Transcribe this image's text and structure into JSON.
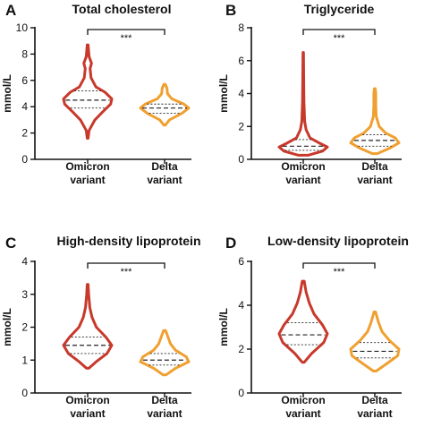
{
  "chart_data": [
    {
      "panel": "A",
      "type": "violin",
      "title": "Total cholesterol",
      "ylabel": "mmol/L",
      "ylim": [
        0,
        10
      ],
      "yticks": [
        "0",
        "2",
        "4",
        "6",
        "8",
        "10"
      ],
      "categories": [
        "Omicron\nvariant",
        "Delta\nvariant"
      ],
      "significance": "***",
      "series": [
        {
          "color": "#c8392b",
          "min": 1.6,
          "q1": 3.9,
          "median": 4.5,
          "q3": 5.2,
          "max": 8.7,
          "profile": [
            [
              1.6,
              0.02
            ],
            [
              2.2,
              0.06
            ],
            [
              3.0,
              0.3
            ],
            [
              3.6,
              0.62
            ],
            [
              4.2,
              0.95
            ],
            [
              4.6,
              1.0
            ],
            [
              5.1,
              0.72
            ],
            [
              5.5,
              0.34
            ],
            [
              6.2,
              0.14
            ],
            [
              6.9,
              0.1
            ],
            [
              7.3,
              0.16
            ],
            [
              7.8,
              0.06
            ],
            [
              8.7,
              0.02
            ]
          ]
        },
        {
          "color": "#f0a030",
          "min": 2.6,
          "q1": 3.5,
          "median": 3.9,
          "q3": 4.2,
          "max": 5.7,
          "profile": [
            [
              2.6,
              0.03
            ],
            [
              3.0,
              0.2
            ],
            [
              3.5,
              0.72
            ],
            [
              3.9,
              1.0
            ],
            [
              4.2,
              0.8
            ],
            [
              4.6,
              0.3
            ],
            [
              5.0,
              0.12
            ],
            [
              5.4,
              0.1
            ],
            [
              5.7,
              0.03
            ]
          ]
        }
      ]
    },
    {
      "panel": "B",
      "type": "violin",
      "title": "Triglyceride",
      "ylabel": "mmol/L",
      "ylim": [
        0,
        8
      ],
      "yticks": [
        "0",
        "2",
        "4",
        "6",
        "8"
      ],
      "categories": [
        "Omicron\nvariant",
        "Delta\nvariant"
      ],
      "significance": "***",
      "series": [
        {
          "color": "#c8392b",
          "min": 0.25,
          "q1": 0.55,
          "median": 0.8,
          "q3": 1.2,
          "max": 6.5,
          "profile": [
            [
              0.25,
              0.2
            ],
            [
              0.5,
              0.8
            ],
            [
              0.75,
              1.0
            ],
            [
              1.0,
              0.65
            ],
            [
              1.3,
              0.28
            ],
            [
              1.8,
              0.12
            ],
            [
              2.3,
              0.06
            ],
            [
              3.5,
              0.03
            ],
            [
              5.0,
              0.02
            ],
            [
              6.5,
              0.01
            ]
          ]
        },
        {
          "color": "#f0a030",
          "min": 0.35,
          "q1": 0.8,
          "median": 1.15,
          "q3": 1.5,
          "max": 4.3,
          "profile": [
            [
              0.35,
              0.1
            ],
            [
              0.7,
              0.65
            ],
            [
              1.0,
              1.0
            ],
            [
              1.3,
              0.85
            ],
            [
              1.6,
              0.45
            ],
            [
              2.0,
              0.18
            ],
            [
              2.6,
              0.06
            ],
            [
              3.3,
              0.04
            ],
            [
              4.0,
              0.04
            ],
            [
              4.3,
              0.02
            ]
          ]
        }
      ]
    },
    {
      "panel": "C",
      "type": "violin",
      "title": "High-density lipoprotein",
      "ylabel": "mmol/L",
      "ylim": [
        0,
        4
      ],
      "yticks": [
        "0",
        "1",
        "2",
        "3",
        "4"
      ],
      "categories": [
        "Omicron\nvariant",
        "Delta\nvariant"
      ],
      "significance": "***",
      "series": [
        {
          "color": "#c8392b",
          "min": 0.75,
          "q1": 1.2,
          "median": 1.45,
          "q3": 1.7,
          "max": 3.3,
          "profile": [
            [
              0.75,
              0.05
            ],
            [
              0.95,
              0.35
            ],
            [
              1.2,
              0.8
            ],
            [
              1.45,
              1.0
            ],
            [
              1.7,
              0.75
            ],
            [
              2.0,
              0.36
            ],
            [
              2.3,
              0.18
            ],
            [
              2.6,
              0.09
            ],
            [
              3.0,
              0.04
            ],
            [
              3.3,
              0.02
            ]
          ]
        },
        {
          "color": "#f0a030",
          "min": 0.55,
          "q1": 0.85,
          "median": 1.0,
          "q3": 1.2,
          "max": 1.9,
          "profile": [
            [
              0.55,
              0.06
            ],
            [
              0.75,
              0.45
            ],
            [
              0.95,
              1.0
            ],
            [
              1.1,
              0.9
            ],
            [
              1.3,
              0.45
            ],
            [
              1.5,
              0.24
            ],
            [
              1.7,
              0.14
            ],
            [
              1.9,
              0.04
            ]
          ]
        }
      ]
    },
    {
      "panel": "D",
      "type": "violin",
      "title": "Low-density lipoprotein",
      "ylabel": "mmol/L",
      "ylim": [
        0,
        6
      ],
      "yticks": [
        "0",
        "2",
        "4",
        "6"
      ],
      "categories": [
        "Omicron\nvariant",
        "Delta\nvariant"
      ],
      "significance": "***",
      "series": [
        {
          "color": "#c8392b",
          "min": 1.4,
          "q1": 2.2,
          "median": 2.65,
          "q3": 3.2,
          "max": 5.1,
          "profile": [
            [
              1.4,
              0.04
            ],
            [
              1.8,
              0.35
            ],
            [
              2.3,
              0.85
            ],
            [
              2.7,
              1.0
            ],
            [
              3.1,
              0.8
            ],
            [
              3.6,
              0.45
            ],
            [
              4.1,
              0.25
            ],
            [
              4.6,
              0.12
            ],
            [
              5.1,
              0.04
            ]
          ]
        },
        {
          "color": "#f0a030",
          "min": 1.0,
          "q1": 1.6,
          "median": 1.9,
          "q3": 2.3,
          "max": 3.7,
          "profile": [
            [
              1.0,
              0.06
            ],
            [
              1.3,
              0.45
            ],
            [
              1.7,
              0.95
            ],
            [
              2.0,
              1.0
            ],
            [
              2.4,
              0.6
            ],
            [
              2.8,
              0.3
            ],
            [
              3.2,
              0.16
            ],
            [
              3.5,
              0.08
            ],
            [
              3.7,
              0.03
            ]
          ]
        }
      ]
    }
  ]
}
